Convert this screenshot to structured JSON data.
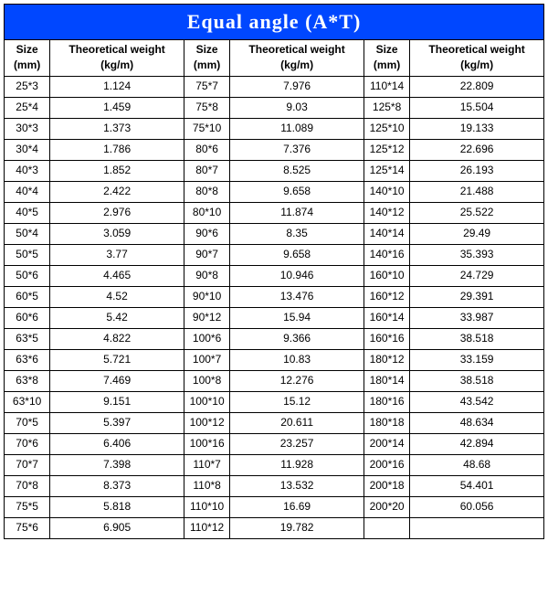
{
  "title": "Equal   angle (A*T)",
  "title_bg": "#0047ff",
  "title_fg": "#ffffff",
  "border_color": "#000000",
  "columns": [
    {
      "h1": "Size",
      "h2": "(mm)"
    },
    {
      "h1": "Theoretical weight",
      "h2": "(kg/m)"
    },
    {
      "h1": "Size",
      "h2": "(mm)"
    },
    {
      "h1": "Theoretical weight",
      "h2": "(kg/m)"
    },
    {
      "h1": "Size",
      "h2": "(mm)"
    },
    {
      "h1": "Theoretical weight",
      "h2": "(kg/m)"
    }
  ],
  "rows": [
    [
      "25*3",
      "1.124",
      "75*7",
      "7.976",
      "110*14",
      "22.809"
    ],
    [
      "25*4",
      "1.459",
      "75*8",
      "9.03",
      "125*8",
      "15.504"
    ],
    [
      "30*3",
      "1.373",
      "75*10",
      "11.089",
      "125*10",
      "19.133"
    ],
    [
      "30*4",
      "1.786",
      "80*6",
      "7.376",
      "125*12",
      "22.696"
    ],
    [
      "40*3",
      "1.852",
      "80*7",
      "8.525",
      "125*14",
      "26.193"
    ],
    [
      "40*4",
      "2.422",
      "80*8",
      "9.658",
      "140*10",
      "21.488"
    ],
    [
      "40*5",
      "2.976",
      "80*10",
      "11.874",
      "140*12",
      "25.522"
    ],
    [
      "50*4",
      "3.059",
      "90*6",
      "8.35",
      "140*14",
      "29.49"
    ],
    [
      "50*5",
      "3.77",
      "90*7",
      "9.658",
      "140*16",
      "35.393"
    ],
    [
      "50*6",
      "4.465",
      "90*8",
      "10.946",
      "160*10",
      "24.729"
    ],
    [
      "60*5",
      "4.52",
      "90*10",
      "13.476",
      "160*12",
      "29.391"
    ],
    [
      "60*6",
      "5.42",
      "90*12",
      "15.94",
      "160*14",
      "33.987"
    ],
    [
      "63*5",
      "4.822",
      "100*6",
      "9.366",
      "160*16",
      "38.518"
    ],
    [
      "63*6",
      "5.721",
      "100*7",
      "10.83",
      "180*12",
      "33.159"
    ],
    [
      "63*8",
      "7.469",
      "100*8",
      "12.276",
      "180*14",
      "38.518"
    ],
    [
      "63*10",
      "9.151",
      "100*10",
      "15.12",
      "180*16",
      "43.542"
    ],
    [
      "70*5",
      "5.397",
      "100*12",
      "20.611",
      "180*18",
      "48.634"
    ],
    [
      "70*6",
      "6.406",
      "100*16",
      "23.257",
      "200*14",
      "42.894"
    ],
    [
      "70*7",
      "7.398",
      "110*7",
      "11.928",
      "200*16",
      "48.68"
    ],
    [
      "70*8",
      "8.373",
      "110*8",
      "13.532",
      "200*18",
      "54.401"
    ],
    [
      "75*5",
      "5.818",
      "110*10",
      "16.69",
      "200*20",
      "60.056"
    ],
    [
      "75*6",
      "6.905",
      "110*12",
      "19.782",
      "",
      ""
    ]
  ]
}
